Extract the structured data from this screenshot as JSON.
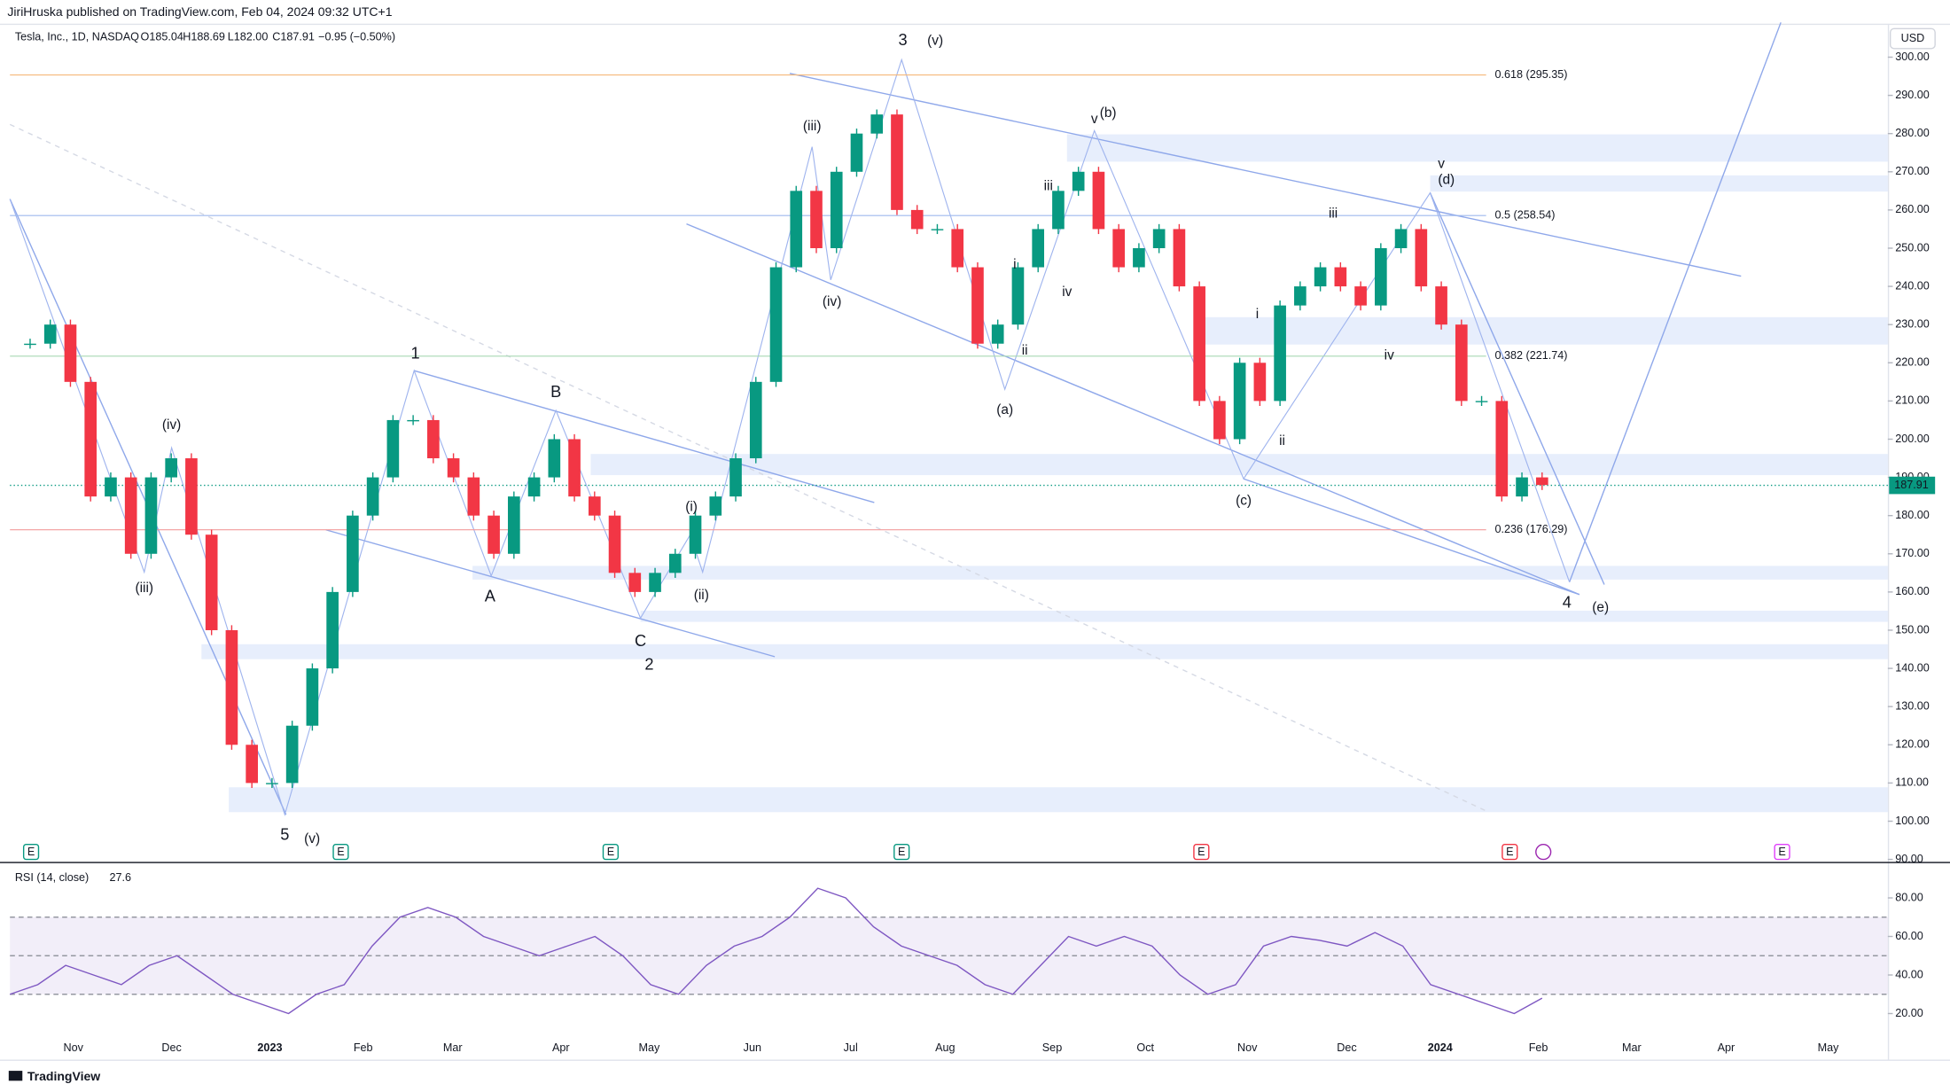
{
  "chart_data": {
    "type": "candlestick",
    "publisher": "JiriHruska published on TradingView.com, Feb 04, 2024 09:32 UTC+1",
    "symbol": "Tesla, Inc., 1D, NASDAQ",
    "ohlc_legend": [
      "O185.04",
      "H188.69",
      "L182.00",
      "C187.91",
      "−0.95 (−0.50%)"
    ],
    "currency": "USD",
    "last_price": {
      "value": 187.91,
      "label": "187.91"
    },
    "up_color": "#089981",
    "down_color": "#f23645",
    "closes": [
      225,
      225,
      230,
      215,
      185,
      190,
      170,
      190,
      195,
      175,
      150,
      120,
      110,
      110,
      125,
      140,
      160,
      180,
      190,
      205,
      205,
      195,
      190,
      180,
      170,
      185,
      190,
      200,
      185,
      180,
      165,
      160,
      165,
      170,
      180,
      185,
      195,
      215,
      245,
      265,
      250,
      270,
      280,
      285,
      260,
      255,
      255,
      245,
      225,
      230,
      245,
      255,
      265,
      270,
      255,
      245,
      250,
      255,
      240,
      210,
      200,
      220,
      210,
      235,
      240,
      245,
      240,
      235,
      250,
      255,
      240,
      230,
      210,
      210,
      185,
      190,
      188
    ],
    "ylim": [
      89.35,
      308.44
    ],
    "yticks": [
      {
        "value": 90,
        "label": "90.00"
      },
      {
        "value": 100,
        "label": "100.00"
      },
      {
        "value": 110,
        "label": "110.00"
      },
      {
        "value": 120,
        "label": "120.00"
      },
      {
        "value": 130,
        "label": "130.00"
      },
      {
        "value": 140,
        "label": "140.00"
      },
      {
        "value": 150,
        "label": "150.00"
      },
      {
        "value": 160,
        "label": "160.00"
      },
      {
        "value": 170,
        "label": "170.00"
      },
      {
        "value": 180,
        "label": "180.00"
      },
      {
        "value": 190,
        "label": "190.00"
      },
      {
        "value": 200,
        "label": "200.00"
      },
      {
        "value": 210,
        "label": "210.00"
      },
      {
        "value": 220,
        "label": "220.00"
      },
      {
        "value": 230,
        "label": "230.00"
      },
      {
        "value": 240,
        "label": "240.00"
      },
      {
        "value": 250,
        "label": "250.00"
      },
      {
        "value": 260,
        "label": "260.00"
      },
      {
        "value": 270,
        "label": "270.00"
      },
      {
        "value": 280,
        "label": "280.00"
      },
      {
        "value": 290,
        "label": "290.00"
      },
      {
        "value": 300,
        "label": "300.00"
      }
    ],
    "fib_levels": [
      {
        "label": "0.618 (295.35)",
        "price": 295.35,
        "color": "#f5b97a"
      },
      {
        "label": "0.5 (258.54)",
        "price": 258.54,
        "color": "#9db8ee"
      },
      {
        "label": "0.382 (221.74)",
        "price": 221.74,
        "color": "#a9d9b4"
      },
      {
        "label": "0.236 (176.29)",
        "price": 176.29,
        "color": "#f29b9b"
      }
    ],
    "wave_labels": [
      "5",
      "(v)",
      "(iii)",
      "(iv)",
      "1",
      "A",
      "B",
      "C",
      "2",
      "(i)",
      "(ii)",
      "(iii)",
      "(iv)",
      "3",
      "(v)",
      "(a)",
      "i",
      "ii",
      "iii",
      "iv",
      "v",
      "(b)",
      "(c)",
      "i",
      "ii",
      "iii",
      "iv",
      "v",
      "(d)",
      "4",
      "(e)"
    ],
    "x_labels": [
      "Nov",
      "Dec",
      "2023",
      "Feb",
      "Mar",
      "Apr",
      "May",
      "Jun",
      "Jul",
      "Aug",
      "Sep",
      "Oct",
      "Nov",
      "Dec",
      "2024",
      "Feb",
      "Mar",
      "Apr",
      "May"
    ],
    "events": [
      "E",
      "E",
      "E",
      "E",
      "E",
      "E",
      "E"
    ],
    "rsi": {
      "title": "RSI (14, close)",
      "last": 27.6,
      "color": "#7e57c2",
      "values": [
        30,
        35,
        45,
        40,
        35,
        45,
        50,
        40,
        30,
        25,
        20,
        30,
        35,
        55,
        70,
        75,
        70,
        60,
        55,
        50,
        55,
        60,
        50,
        35,
        30,
        45,
        55,
        60,
        70,
        85,
        80,
        65,
        55,
        50,
        45,
        35,
        30,
        45,
        60,
        55,
        60,
        55,
        40,
        30,
        35,
        55,
        60,
        58,
        55,
        62,
        55,
        35,
        30,
        25,
        20,
        28
      ],
      "ylim": [
        -3.9,
        96.1
      ],
      "yticks": [
        {
          "value": 20,
          "label": "20.00"
        },
        {
          "value": 40,
          "label": "40.00"
        },
        {
          "value": 60,
          "label": "60.00"
        },
        {
          "value": 80,
          "label": "80.00"
        }
      ],
      "bands": [
        30,
        50,
        70
      ]
    },
    "footer": "TradingView"
  }
}
